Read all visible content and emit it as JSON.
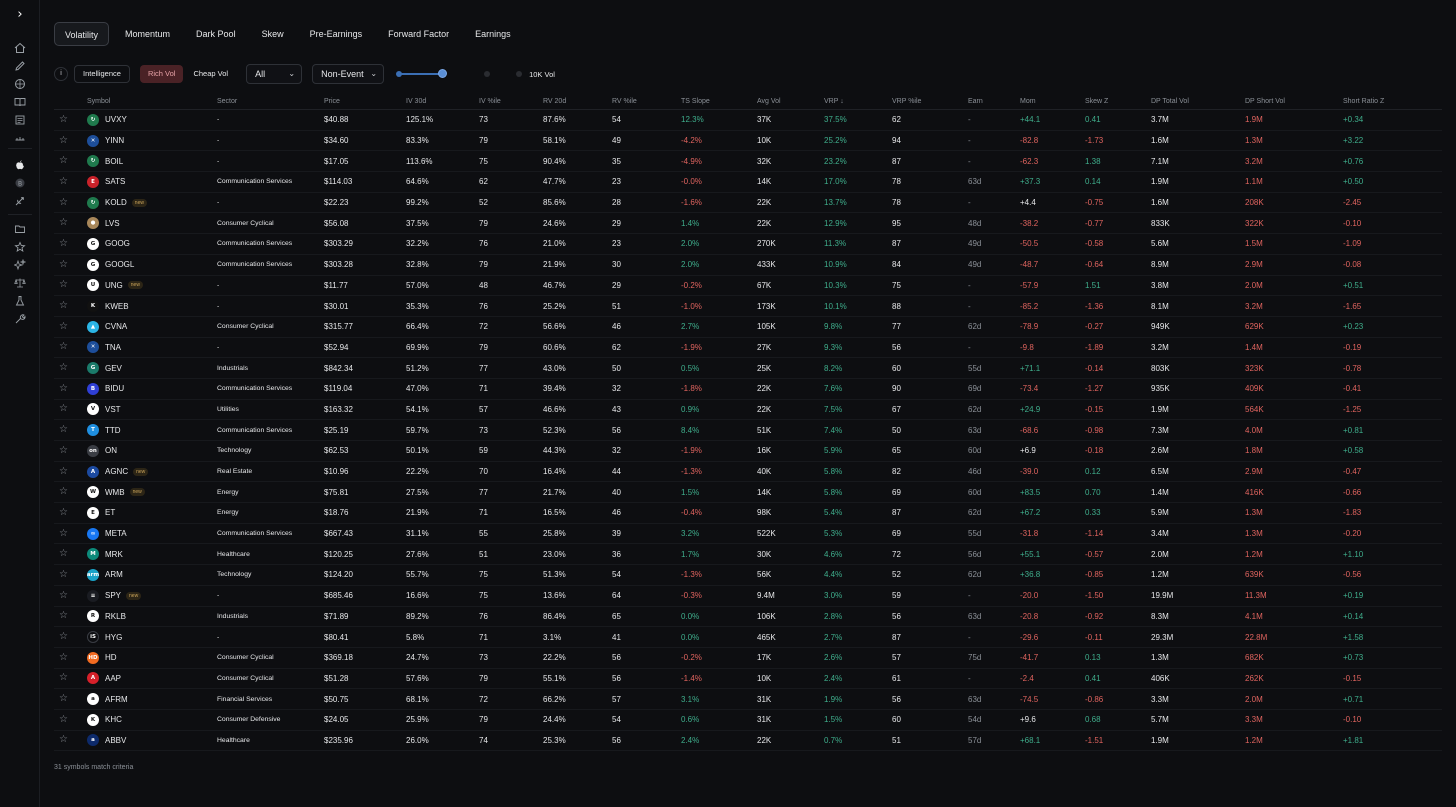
{
  "tabs": [
    "Volatility",
    "Momentum",
    "Dark Pool",
    "Skew",
    "Pre-Earnings",
    "Forward Factor",
    "Earnings"
  ],
  "filters": {
    "info": "i",
    "intelligence": "Intelligence",
    "rich_vol": "Rich Vol",
    "cheap_vol": "Cheap Vol",
    "universe": "All",
    "event": "Non-Event",
    "ten_k_vol": "10K Vol"
  },
  "columns": [
    "Symbol",
    "Sector",
    "Price",
    "IV 30d",
    "IV %ile",
    "RV 20d",
    "RV %ile",
    "TS Slope",
    "Avg Vol",
    "VRP ↓",
    "VRP %ile",
    "Earn",
    "Mom",
    "Skew Z",
    "DP Total Vol",
    "DP Short Vol",
    "Short Ratio Z"
  ],
  "rows": [
    {
      "symbol": "UVXY",
      "new": false,
      "logo_color": "#1f7a4d",
      "logo_text": "↻",
      "sector": "-",
      "price": "$40.88",
      "iv": "125.1%",
      "ivp": "73",
      "rv": "87.6%",
      "rvp": "54",
      "ts": "12.3%",
      "avg": "37K",
      "vrp": "37.5%",
      "vrpp": "62",
      "earn": "-",
      "mom": "+44.1",
      "skew": "0.41",
      "dptv": "3.7M",
      "dpsv": "1.9M",
      "srz": "+0.34"
    },
    {
      "symbol": "YINN",
      "new": false,
      "logo_color": "#1d4e9a",
      "logo_text": "✕",
      "sector": "-",
      "price": "$34.60",
      "iv": "83.3%",
      "ivp": "79",
      "rv": "58.1%",
      "rvp": "49",
      "ts": "-4.2%",
      "avg": "10K",
      "vrp": "25.2%",
      "vrpp": "94",
      "earn": "-",
      "mom": "-82.8",
      "skew": "-1.73",
      "dptv": "1.6M",
      "dpsv": "1.3M",
      "srz": "+3.22"
    },
    {
      "symbol": "BOIL",
      "new": false,
      "logo_color": "#1f7a4d",
      "logo_text": "↻",
      "sector": "-",
      "price": "$17.05",
      "iv": "113.6%",
      "ivp": "75",
      "rv": "90.4%",
      "rvp": "35",
      "ts": "-4.9%",
      "avg": "32K",
      "vrp": "23.2%",
      "vrpp": "87",
      "earn": "-",
      "mom": "-62.3",
      "skew": "1.38",
      "dptv": "7.1M",
      "dpsv": "3.2M",
      "srz": "+0.76"
    },
    {
      "symbol": "SATS",
      "new": false,
      "logo_color": "#c9222a",
      "logo_text": "E",
      "sector": "Communication Services",
      "price": "$114.03",
      "iv": "64.6%",
      "ivp": "62",
      "rv": "47.7%",
      "rvp": "23",
      "ts": "-0.0%",
      "avg": "14K",
      "vrp": "17.0%",
      "vrpp": "78",
      "earn": "63d",
      "mom": "+37.3",
      "skew": "0.14",
      "dptv": "1.9M",
      "dpsv": "1.1M",
      "srz": "+0.50"
    },
    {
      "symbol": "KOLD",
      "new": true,
      "logo_color": "#1f7a4d",
      "logo_text": "↻",
      "sector": "-",
      "price": "$22.23",
      "iv": "99.2%",
      "ivp": "52",
      "rv": "85.6%",
      "rvp": "28",
      "ts": "-1.6%",
      "avg": "22K",
      "vrp": "13.7%",
      "vrpp": "78",
      "earn": "-",
      "mom": "+4.4",
      "skew": "-0.75",
      "dptv": "1.6M",
      "dpsv": "208K",
      "srz": "-2.45"
    },
    {
      "symbol": "LVS",
      "new": false,
      "logo_color": "#a8875a",
      "logo_text": "●",
      "sector": "Consumer Cyclical",
      "price": "$56.08",
      "iv": "37.5%",
      "ivp": "79",
      "rv": "24.6%",
      "rvp": "29",
      "ts": "1.4%",
      "avg": "22K",
      "vrp": "12.9%",
      "vrpp": "95",
      "earn": "48d",
      "mom": "-38.2",
      "skew": "-0.77",
      "dptv": "833K",
      "dpsv": "322K",
      "srz": "-0.10"
    },
    {
      "symbol": "GOOG",
      "new": false,
      "logo_color": "#ffffff",
      "logo_text": "G",
      "sector": "Communication Services",
      "price": "$303.29",
      "iv": "32.2%",
      "ivp": "76",
      "rv": "21.0%",
      "rvp": "23",
      "ts": "2.0%",
      "avg": "270K",
      "vrp": "11.3%",
      "vrpp": "87",
      "earn": "49d",
      "mom": "-50.5",
      "skew": "-0.58",
      "dptv": "5.6M",
      "dpsv": "1.5M",
      "srz": "-1.09"
    },
    {
      "symbol": "GOOGL",
      "new": false,
      "logo_color": "#ffffff",
      "logo_text": "G",
      "sector": "Communication Services",
      "price": "$303.28",
      "iv": "32.8%",
      "ivp": "79",
      "rv": "21.9%",
      "rvp": "30",
      "ts": "2.0%",
      "avg": "433K",
      "vrp": "10.9%",
      "vrpp": "84",
      "earn": "49d",
      "mom": "-48.7",
      "skew": "-0.64",
      "dptv": "8.9M",
      "dpsv": "2.9M",
      "srz": "-0.08"
    },
    {
      "symbol": "UNG",
      "new": true,
      "logo_color": "#ffffff",
      "logo_text": "U",
      "sector": "-",
      "price": "$11.77",
      "iv": "57.0%",
      "ivp": "48",
      "rv": "46.7%",
      "rvp": "29",
      "ts": "-0.2%",
      "avg": "67K",
      "vrp": "10.3%",
      "vrpp": "75",
      "earn": "-",
      "mom": "-57.9",
      "skew": "1.51",
      "dptv": "3.8M",
      "dpsv": "2.0M",
      "srz": "+0.51"
    },
    {
      "symbol": "KWEB",
      "new": false,
      "logo_color": "#111111",
      "logo_text": "K",
      "sector": "-",
      "price": "$30.01",
      "iv": "35.3%",
      "ivp": "76",
      "rv": "25.2%",
      "rvp": "51",
      "ts": "-1.0%",
      "avg": "173K",
      "vrp": "10.1%",
      "vrpp": "88",
      "earn": "-",
      "mom": "-85.2",
      "skew": "-1.36",
      "dptv": "8.1M",
      "dpsv": "3.2M",
      "srz": "-1.65"
    },
    {
      "symbol": "CVNA",
      "new": false,
      "logo_color": "#2bb5e6",
      "logo_text": "▲",
      "sector": "Consumer Cyclical",
      "price": "$315.77",
      "iv": "66.4%",
      "ivp": "72",
      "rv": "56.6%",
      "rvp": "46",
      "ts": "2.7%",
      "avg": "105K",
      "vrp": "9.8%",
      "vrpp": "77",
      "earn": "62d",
      "mom": "-78.9",
      "skew": "-0.27",
      "dptv": "949K",
      "dpsv": "629K",
      "srz": "+0.23"
    },
    {
      "symbol": "TNA",
      "new": false,
      "logo_color": "#1d4e9a",
      "logo_text": "✕",
      "sector": "-",
      "price": "$52.94",
      "iv": "69.9%",
      "ivp": "79",
      "rv": "60.6%",
      "rvp": "62",
      "ts": "-1.9%",
      "avg": "27K",
      "vrp": "9.3%",
      "vrpp": "56",
      "earn": "-",
      "mom": "-9.8",
      "skew": "-1.89",
      "dptv": "3.2M",
      "dpsv": "1.4M",
      "srz": "-0.19"
    },
    {
      "symbol": "GEV",
      "new": false,
      "logo_color": "#1a7a6a",
      "logo_text": "G",
      "sector": "Industrials",
      "price": "$842.34",
      "iv": "51.2%",
      "ivp": "77",
      "rv": "43.0%",
      "rvp": "50",
      "ts": "0.5%",
      "avg": "25K",
      "vrp": "8.2%",
      "vrpp": "60",
      "earn": "55d",
      "mom": "+71.1",
      "skew": "-0.14",
      "dptv": "803K",
      "dpsv": "323K",
      "srz": "-0.78"
    },
    {
      "symbol": "BIDU",
      "new": false,
      "logo_color": "#2f3fd6",
      "logo_text": "B",
      "sector": "Communication Services",
      "price": "$119.04",
      "iv": "47.0%",
      "ivp": "71",
      "rv": "39.4%",
      "rvp": "32",
      "ts": "-1.8%",
      "avg": "22K",
      "vrp": "7.6%",
      "vrpp": "90",
      "earn": "69d",
      "mom": "-73.4",
      "skew": "-1.27",
      "dptv": "935K",
      "dpsv": "409K",
      "srz": "-0.41"
    },
    {
      "symbol": "VST",
      "new": false,
      "logo_color": "#ffffff",
      "logo_text": "V",
      "sector": "Utilities",
      "price": "$163.32",
      "iv": "54.1%",
      "ivp": "57",
      "rv": "46.6%",
      "rvp": "43",
      "ts": "0.9%",
      "avg": "22K",
      "vrp": "7.5%",
      "vrpp": "67",
      "earn": "62d",
      "mom": "+24.9",
      "skew": "-0.15",
      "dptv": "1.9M",
      "dpsv": "564K",
      "srz": "-1.25"
    },
    {
      "symbol": "TTD",
      "new": false,
      "logo_color": "#1f8fe0",
      "logo_text": "T",
      "sector": "Communication Services",
      "price": "$25.19",
      "iv": "59.7%",
      "ivp": "73",
      "rv": "52.3%",
      "rvp": "56",
      "ts": "8.4%",
      "avg": "51K",
      "vrp": "7.4%",
      "vrpp": "50",
      "earn": "63d",
      "mom": "-68.6",
      "skew": "-0.98",
      "dptv": "7.3M",
      "dpsv": "4.0M",
      "srz": "+0.81"
    },
    {
      "symbol": "ON",
      "new": false,
      "logo_color": "#3a3d44",
      "logo_text": "on",
      "sector": "Technology",
      "price": "$62.53",
      "iv": "50.1%",
      "ivp": "59",
      "rv": "44.3%",
      "rvp": "32",
      "ts": "-1.9%",
      "avg": "16K",
      "vrp": "5.9%",
      "vrpp": "65",
      "earn": "60d",
      "mom": "+6.9",
      "skew": "-0.18",
      "dptv": "2.6M",
      "dpsv": "1.8M",
      "srz": "+0.58"
    },
    {
      "symbol": "AGNC",
      "new": true,
      "logo_color": "#1c4aa0",
      "logo_text": "A",
      "sector": "Real Estate",
      "price": "$10.96",
      "iv": "22.2%",
      "ivp": "70",
      "rv": "16.4%",
      "rvp": "44",
      "ts": "-1.3%",
      "avg": "40K",
      "vrp": "5.8%",
      "vrpp": "82",
      "earn": "46d",
      "mom": "-39.0",
      "skew": "0.12",
      "dptv": "6.5M",
      "dpsv": "2.9M",
      "srz": "-0.47"
    },
    {
      "symbol": "WMB",
      "new": true,
      "logo_color": "#ffffff",
      "logo_text": "W",
      "sector": "Energy",
      "price": "$75.81",
      "iv": "27.5%",
      "ivp": "77",
      "rv": "21.7%",
      "rvp": "40",
      "ts": "1.5%",
      "avg": "14K",
      "vrp": "5.8%",
      "vrpp": "69",
      "earn": "60d",
      "mom": "+83.5",
      "skew": "0.70",
      "dptv": "1.4M",
      "dpsv": "416K",
      "srz": "-0.66"
    },
    {
      "symbol": "ET",
      "new": false,
      "logo_color": "#ffffff",
      "logo_text": "E",
      "sector": "Energy",
      "price": "$18.76",
      "iv": "21.9%",
      "ivp": "71",
      "rv": "16.5%",
      "rvp": "46",
      "ts": "-0.4%",
      "avg": "98K",
      "vrp": "5.4%",
      "vrpp": "87",
      "earn": "62d",
      "mom": "+67.2",
      "skew": "0.33",
      "dptv": "5.9M",
      "dpsv": "1.3M",
      "srz": "-1.83"
    },
    {
      "symbol": "META",
      "new": false,
      "logo_color": "#1877f2",
      "logo_text": "∞",
      "sector": "Communication Services",
      "price": "$667.43",
      "iv": "31.1%",
      "ivp": "55",
      "rv": "25.8%",
      "rvp": "39",
      "ts": "3.2%",
      "avg": "522K",
      "vrp": "5.3%",
      "vrpp": "69",
      "earn": "55d",
      "mom": "-31.8",
      "skew": "-1.14",
      "dptv": "3.4M",
      "dpsv": "1.3M",
      "srz": "-0.20"
    },
    {
      "symbol": "MRK",
      "new": false,
      "logo_color": "#0c8a7a",
      "logo_text": "M",
      "sector": "Healthcare",
      "price": "$120.25",
      "iv": "27.6%",
      "ivp": "51",
      "rv": "23.0%",
      "rvp": "36",
      "ts": "1.7%",
      "avg": "30K",
      "vrp": "4.6%",
      "vrpp": "72",
      "earn": "56d",
      "mom": "+55.1",
      "skew": "-0.57",
      "dptv": "2.0M",
      "dpsv": "1.2M",
      "srz": "+1.10"
    },
    {
      "symbol": "ARM",
      "new": false,
      "logo_color": "#1aa3c8",
      "logo_text": "arm",
      "sector": "Technology",
      "price": "$124.20",
      "iv": "55.7%",
      "ivp": "75",
      "rv": "51.3%",
      "rvp": "54",
      "ts": "-1.3%",
      "avg": "56K",
      "vrp": "4.4%",
      "vrpp": "52",
      "earn": "62d",
      "mom": "+36.8",
      "skew": "-0.85",
      "dptv": "1.2M",
      "dpsv": "639K",
      "srz": "-0.56"
    },
    {
      "symbol": "SPY",
      "new": true,
      "logo_color": "#1a1c22",
      "logo_text": "≡",
      "sector": "-",
      "price": "$685.46",
      "iv": "16.6%",
      "ivp": "75",
      "rv": "13.6%",
      "rvp": "64",
      "ts": "-0.3%",
      "avg": "9.4M",
      "vrp": "3.0%",
      "vrpp": "59",
      "earn": "-",
      "mom": "-20.0",
      "skew": "-1.50",
      "dptv": "19.9M",
      "dpsv": "11.3M",
      "srz": "+0.19"
    },
    {
      "symbol": "RKLB",
      "new": false,
      "logo_color": "#ffffff",
      "logo_text": "R",
      "sector": "Industrials",
      "price": "$71.89",
      "iv": "89.2%",
      "ivp": "76",
      "rv": "86.4%",
      "rvp": "65",
      "ts": "0.0%",
      "avg": "106K",
      "vrp": "2.8%",
      "vrpp": "56",
      "earn": "63d",
      "mom": "-20.8",
      "skew": "-0.92",
      "dptv": "8.3M",
      "dpsv": "4.1M",
      "srz": "+0.14"
    },
    {
      "symbol": "HYG",
      "new": false,
      "logo_color": "#0d0e11",
      "logo_text": "iS",
      "sector": "-",
      "price": "$80.41",
      "iv": "5.8%",
      "ivp": "71",
      "rv": "3.1%",
      "rvp": "41",
      "ts": "0.0%",
      "avg": "465K",
      "vrp": "2.7%",
      "vrpp": "87",
      "earn": "-",
      "mom": "-29.6",
      "skew": "-0.11",
      "dptv": "29.3M",
      "dpsv": "22.8M",
      "srz": "+1.58"
    },
    {
      "symbol": "HD",
      "new": false,
      "logo_color": "#f26b21",
      "logo_text": "HD",
      "sector": "Consumer Cyclical",
      "price": "$369.18",
      "iv": "24.7%",
      "ivp": "73",
      "rv": "22.2%",
      "rvp": "56",
      "ts": "-0.2%",
      "avg": "17K",
      "vrp": "2.6%",
      "vrpp": "57",
      "earn": "75d",
      "mom": "-41.7",
      "skew": "0.13",
      "dptv": "1.3M",
      "dpsv": "682K",
      "srz": "+0.73"
    },
    {
      "symbol": "AAP",
      "new": false,
      "logo_color": "#d6202a",
      "logo_text": "A",
      "sector": "Consumer Cyclical",
      "price": "$51.28",
      "iv": "57.6%",
      "ivp": "79",
      "rv": "55.1%",
      "rvp": "56",
      "ts": "-1.4%",
      "avg": "10K",
      "vrp": "2.4%",
      "vrpp": "61",
      "earn": "-",
      "mom": "-2.4",
      "skew": "0.41",
      "dptv": "406K",
      "dpsv": "262K",
      "srz": "-0.15"
    },
    {
      "symbol": "AFRM",
      "new": false,
      "logo_color": "#ffffff",
      "logo_text": "a",
      "sector": "Financial Services",
      "price": "$50.75",
      "iv": "68.1%",
      "ivp": "72",
      "rv": "66.2%",
      "rvp": "57",
      "ts": "3.1%",
      "avg": "31K",
      "vrp": "1.9%",
      "vrpp": "56",
      "earn": "63d",
      "mom": "-74.5",
      "skew": "-0.86",
      "dptv": "3.3M",
      "dpsv": "2.0M",
      "srz": "+0.71"
    },
    {
      "symbol": "KHC",
      "new": false,
      "logo_color": "#ffffff",
      "logo_text": "K",
      "sector": "Consumer Defensive",
      "price": "$24.05",
      "iv": "25.9%",
      "ivp": "79",
      "rv": "24.4%",
      "rvp": "54",
      "ts": "0.6%",
      "avg": "31K",
      "vrp": "1.5%",
      "vrpp": "60",
      "earn": "54d",
      "mom": "+9.6",
      "skew": "0.68",
      "dptv": "5.7M",
      "dpsv": "3.3M",
      "srz": "-0.10"
    },
    {
      "symbol": "ABBV",
      "new": false,
      "logo_color": "#0d2a6b",
      "logo_text": "a",
      "sector": "Healthcare",
      "price": "$235.96",
      "iv": "26.0%",
      "ivp": "74",
      "rv": "25.3%",
      "rvp": "56",
      "ts": "2.4%",
      "avg": "22K",
      "vrp": "0.7%",
      "vrpp": "51",
      "earn": "57d",
      "mom": "+68.1",
      "skew": "-1.51",
      "dptv": "1.9M",
      "dpsv": "1.2M",
      "srz": "+1.81"
    }
  ],
  "new_label": "new",
  "footer": "31 symbols match criteria",
  "colors": {
    "positive": "#3fae8c",
    "negative": "#e0645f",
    "rich_vol_bg": "#4a2226",
    "accent": "#3b6fb5"
  }
}
